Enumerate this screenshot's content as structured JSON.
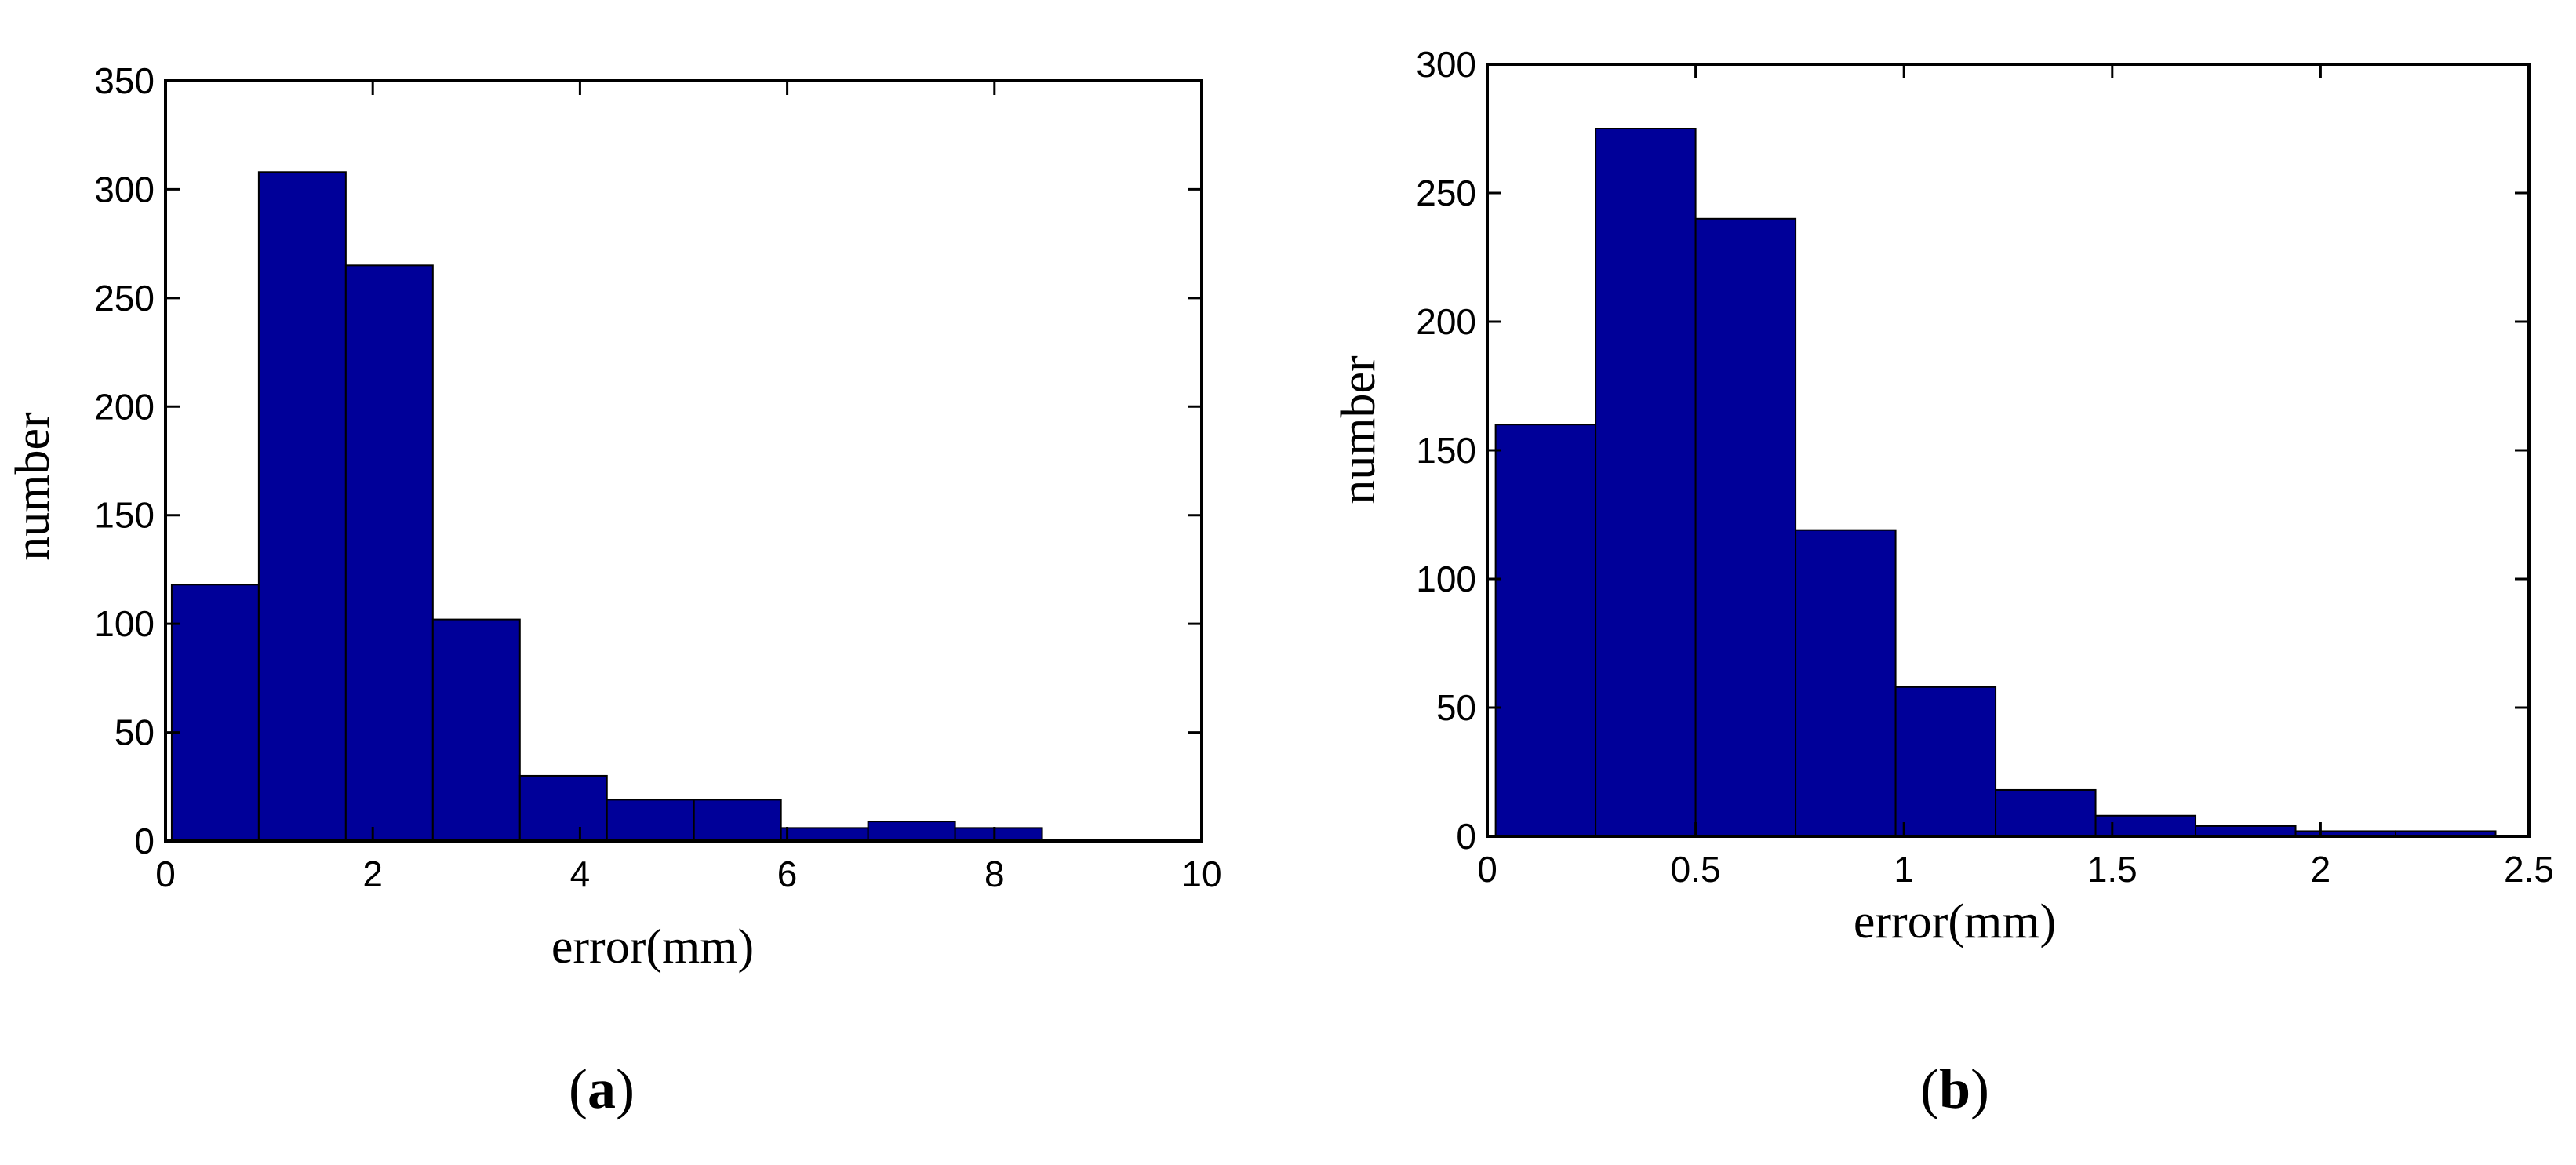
{
  "colors": {
    "bar": "#000099",
    "edge": "#000000",
    "background": "#ffffff"
  },
  "chart_data": [
    {
      "type": "bar",
      "panel_label": "a",
      "xlabel": "error(mm)",
      "ylabel": "number",
      "xlim": [
        0,
        10
      ],
      "ylim": [
        0,
        350
      ],
      "xticks": [
        "0",
        "2",
        "4",
        "6",
        "8",
        "10"
      ],
      "yticks": [
        "0",
        "50",
        "100",
        "150",
        "200",
        "250",
        "300",
        "350"
      ],
      "bin_edges": [
        0.06,
        0.9,
        1.74,
        2.58,
        3.42,
        4.26,
        5.1,
        5.94,
        6.78,
        7.62,
        8.46
      ],
      "values": [
        118,
        308,
        265,
        102,
        30,
        19,
        19,
        6,
        9,
        6
      ],
      "grid": false
    },
    {
      "type": "bar",
      "panel_label": "b",
      "xlabel": "error(mm)",
      "ylabel": "number",
      "xlim": [
        0,
        2.5
      ],
      "ylim": [
        0,
        300
      ],
      "xticks": [
        "0",
        "0.5",
        "1",
        "1.5",
        "2",
        "2.5"
      ],
      "yticks": [
        "0",
        "50",
        "100",
        "150",
        "200",
        "250",
        "300"
      ],
      "bin_edges": [
        0.02,
        0.26,
        0.5,
        0.74,
        0.98,
        1.22,
        1.46,
        1.7,
        1.94,
        2.18,
        2.42
      ],
      "values": [
        160,
        275,
        240,
        119,
        58,
        18,
        8,
        4,
        2,
        2
      ],
      "grid": false
    }
  ]
}
